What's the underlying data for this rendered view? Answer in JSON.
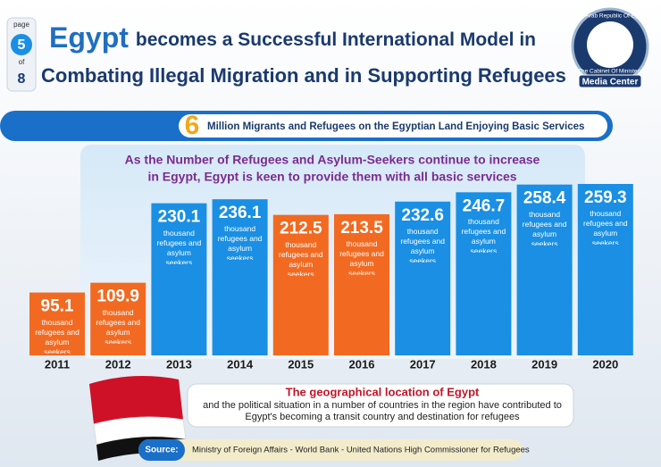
{
  "header": {
    "page_word": "page",
    "page_number": "5",
    "of_word": "of",
    "page_total": "8",
    "title_highlight": "Egypt",
    "title_rest": "becomes a Successful International Model in",
    "title_line2": "Combating Illegal Migration and in Supporting Refugees",
    "logo_top": "The Arab Republic Of Egypt",
    "logo_bottom": "The Cabinet Of Ministers",
    "logo_label": "Media Center"
  },
  "banner": {
    "number": "6",
    "text": "Million Migrants and Refugees on the Egyptian Land Enjoying Basic Services"
  },
  "chart_data": {
    "type": "bar",
    "subtitle": [
      "As the Number of Refugees and Asylum-Seekers continue to increase",
      "in Egypt, Egypt is keen to provide them with all basic services"
    ],
    "categories": [
      "2011",
      "2012",
      "2013",
      "2014",
      "2015",
      "2016",
      "2017",
      "2018",
      "2019",
      "2020"
    ],
    "values": [
      95.1,
      109.9,
      230.1,
      236.1,
      212.5,
      213.5,
      232.6,
      246.7,
      258.4,
      259.3
    ],
    "colors": [
      "#f26a21",
      "#f26a21",
      "#1a8fe3",
      "#1a8fe3",
      "#f26a21",
      "#f26a21",
      "#1a8fe3",
      "#1a8fe3",
      "#1a8fe3",
      "#1a8fe3"
    ],
    "unit_label": "thousand refugees and asylum seekers"
  },
  "footer": {
    "heading": "The geographical location of Egypt",
    "text": "and the political situation in a number of countries in the region have contributed to Egypt's becoming a transit country and destination for refugees",
    "source_label": "Source:",
    "source": "Ministry of Foreign Affairs - World Bank - United Nations High Commissioner for Refugees"
  }
}
